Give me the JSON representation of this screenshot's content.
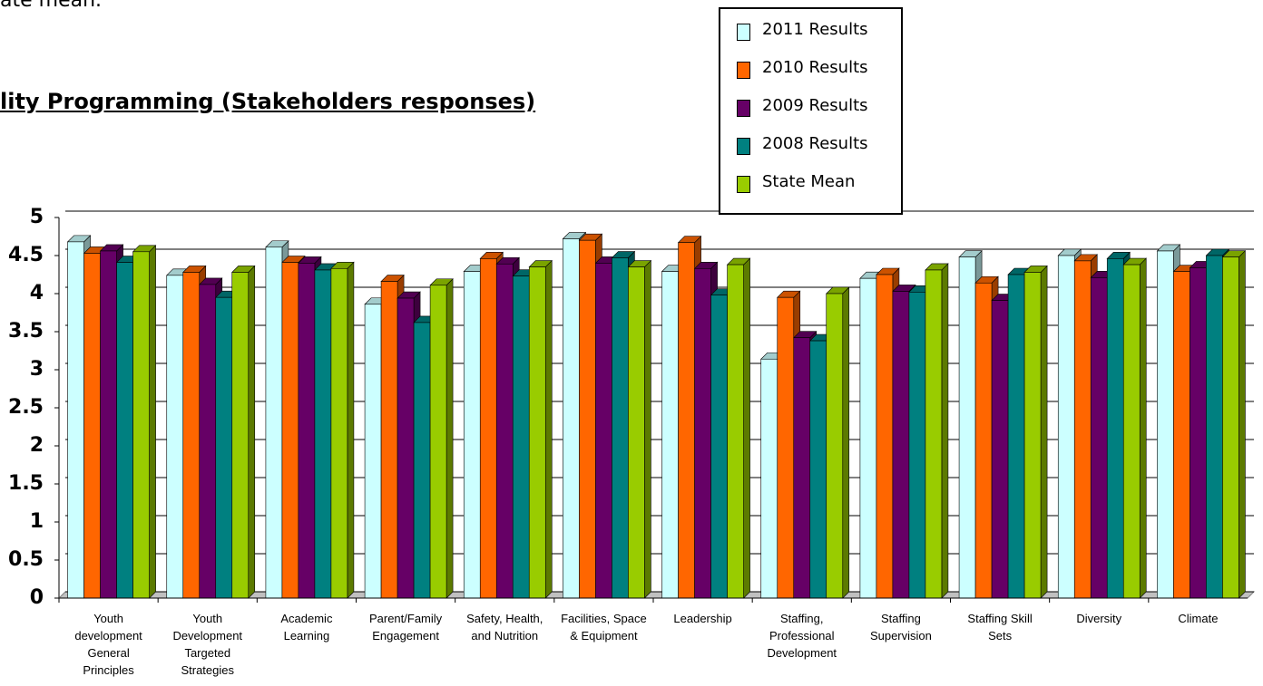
{
  "text_fragment": "ate mean.",
  "chart_data": {
    "type": "bar3d",
    "title": "lity Programming (Stakeholders responses)",
    "categories": [
      "Youth development General Principles",
      "Youth Development Targeted Strategies",
      "Academic Learning",
      "Parent/Family Engagement",
      "Safety, Health, and Nutrition",
      "Facilities, Space & Equipment",
      "Leadership",
      "Staffing, Professional Development",
      "Staffing Supervision",
      "Staffing Skill Sets",
      "Diversity",
      "Climate"
    ],
    "series": [
      {
        "name": "2011 Results",
        "color": "#ccffff",
        "values": [
          4.68,
          4.24,
          4.61,
          3.86,
          4.29,
          4.72,
          4.29,
          3.14,
          4.2,
          4.48,
          4.5,
          4.56
        ]
      },
      {
        "name": "2010 Results",
        "color": "#ff6600",
        "values": [
          4.53,
          4.28,
          4.41,
          4.16,
          4.46,
          4.7,
          4.67,
          3.95,
          4.25,
          4.14,
          4.43,
          4.29
        ]
      },
      {
        "name": "2009 Results",
        "color": "#660066",
        "values": [
          4.56,
          4.12,
          4.4,
          3.94,
          4.39,
          4.4,
          4.33,
          3.42,
          4.03,
          3.91,
          4.21,
          4.34
        ]
      },
      {
        "name": "2008 Results",
        "color": "#008080",
        "values": [
          4.41,
          3.95,
          4.31,
          3.62,
          4.23,
          4.47,
          3.98,
          3.38,
          4.02,
          4.25,
          4.46,
          4.5
        ]
      },
      {
        "name": "State Mean",
        "color": "#99cc00",
        "values": [
          4.55,
          4.28,
          4.33,
          4.11,
          4.35,
          4.35,
          4.38,
          4.0,
          4.31,
          4.28,
          4.38,
          4.48
        ]
      }
    ],
    "ylim": [
      0,
      5
    ],
    "yticks": [
      0,
      0.5,
      1,
      1.5,
      2,
      2.5,
      3,
      3.5,
      4,
      4.5,
      5
    ],
    "grid": true,
    "legend": "top-right"
  }
}
